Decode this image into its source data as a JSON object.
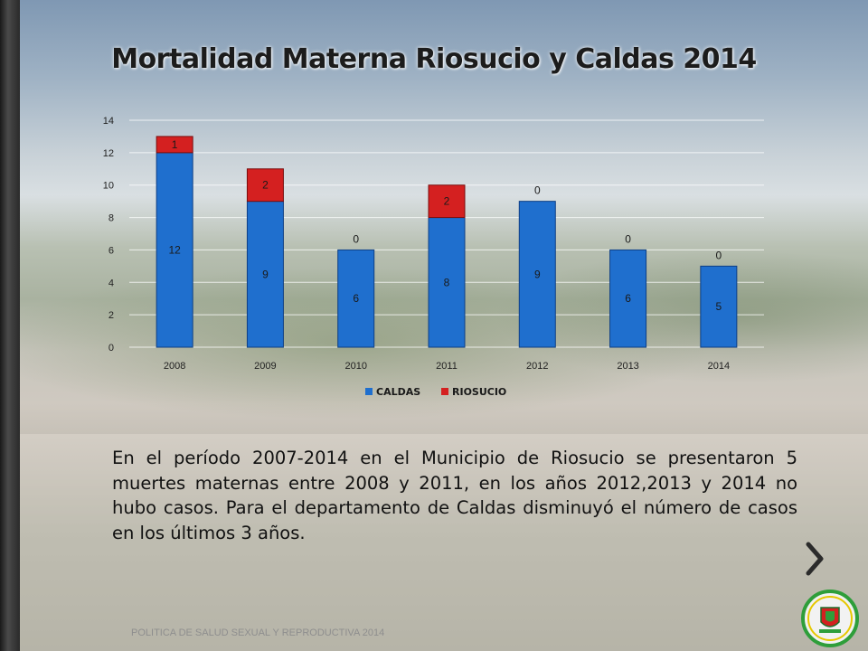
{
  "slide": {
    "title": "Mortalidad Materna Riosucio y Caldas 2014",
    "paragraph": "En el período 2007-2014 en el Municipio de Riosucio se presentaron 5 muertes maternas entre 2008 y 2011, en los años 2012,2013 y 2014 no hubo casos. Para el departamento de Caldas disminuyó el número de casos en los últimos 3 años.",
    "footer": "POLITICA DE SALUD SEXUAL Y REPRODUCTIVA 2014",
    "next_icon": "chevron-right-icon",
    "logo_text": "ALCALDIA MUNICIPAL",
    "logo_sub": "RIOSUCIO CALDAS"
  },
  "chart_data": {
    "type": "bar",
    "stacked": true,
    "categories": [
      "2008",
      "2009",
      "2010",
      "2011",
      "2012",
      "2013",
      "2014"
    ],
    "series": [
      {
        "name": "CALDAS",
        "values": [
          12,
          9,
          6,
          8,
          9,
          6,
          5
        ],
        "color": "#1f6fce"
      },
      {
        "name": "RIOSUCIO",
        "values": [
          1,
          2,
          0,
          2,
          0,
          0,
          0
        ],
        "color": "#d42020"
      }
    ],
    "ylim": [
      0,
      14
    ],
    "yticks": [
      0,
      2,
      4,
      6,
      8,
      10,
      12,
      14
    ],
    "grid": true,
    "legend": "bottom",
    "data_labels": true
  }
}
